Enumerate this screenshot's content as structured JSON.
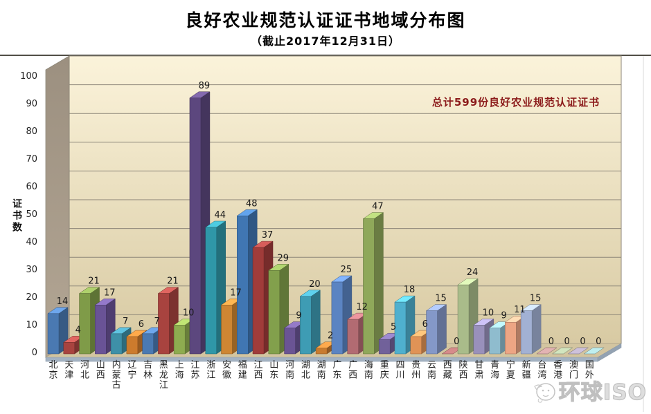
{
  "page": {
    "title": "良好农业规范认证证书地域分布图",
    "subtitle": "（截止2017年12月31日）",
    "watermark_text": "环球ISO"
  },
  "chart_data": {
    "type": "bar",
    "style": "3d-column-vary-colors",
    "title": "良好农业规范认证证书地域分布图",
    "subtitle": "（截止2017年12月31日）",
    "xlabel": "",
    "ylabel": "证书数",
    "ylim": [
      0,
      100
    ],
    "ytick_step": 10,
    "yticks": [
      0,
      10,
      20,
      30,
      40,
      50,
      60,
      70,
      80,
      90,
      100
    ],
    "grid": true,
    "legend": "none",
    "annotation": "总计599份良好农业规范认证证书",
    "total_certificates": 599,
    "categories": [
      "北京",
      "天津",
      "河北",
      "山西",
      "内蒙古",
      "辽宁",
      "吉林",
      "黑龙江",
      "上海",
      "江苏",
      "浙江",
      "安徽",
      "福建",
      "江西",
      "山东",
      "河南",
      "湖北",
      "湖南",
      "广东",
      "广西",
      "海南",
      "重庆",
      "四川",
      "贵州",
      "云南",
      "西藏",
      "陕西",
      "甘肃",
      "青海",
      "宁夏",
      "新疆",
      "台湾",
      "香港",
      "澳门",
      "国外"
    ],
    "values": [
      14,
      4,
      21,
      17,
      7,
      6,
      7,
      21,
      10,
      89,
      44,
      17,
      48,
      37,
      29,
      9,
      20,
      2,
      25,
      12,
      47,
      5,
      18,
      6,
      15,
      0,
      24,
      10,
      9,
      11,
      15,
      0,
      0,
      0,
      0
    ],
    "bar_colors": [
      "#4a79b2",
      "#a8433f",
      "#7f9b48",
      "#695396",
      "#3e90a8",
      "#cc7b2d",
      "#4a79b2",
      "#a8433f",
      "#8eac50",
      "#5c477e",
      "#2f97a8",
      "#ce8633",
      "#4076b2",
      "#a03c3a",
      "#82a04c",
      "#6a5494",
      "#3e9cb4",
      "#c87b2f",
      "#5b84c2",
      "#b26b72",
      "#8fa85a",
      "#71619a",
      "#4fb0ce",
      "#e09356",
      "#8498c8",
      "#a86868",
      "#a9bc8a",
      "#9990bb",
      "#8fbcce",
      "#eda584",
      "#a2b1d4",
      "#b28a8a",
      "#a4b494",
      "#a096ac",
      "#94bcbc"
    ],
    "palette": {
      "wall_top": "#fbf3da",
      "wall_bottom": "#d8caa3",
      "side_wall": "#a3968575",
      "side_wall_color": "#a39685",
      "floor": "#d3c5a0",
      "floor_front_edge": "#a3b2c2",
      "gridline": "#8c8678",
      "top_border": "#514e46",
      "value_label": "#1a1a1a",
      "axis_label": "#1f1f1f",
      "annotation_text": "#8b1a1a"
    }
  }
}
